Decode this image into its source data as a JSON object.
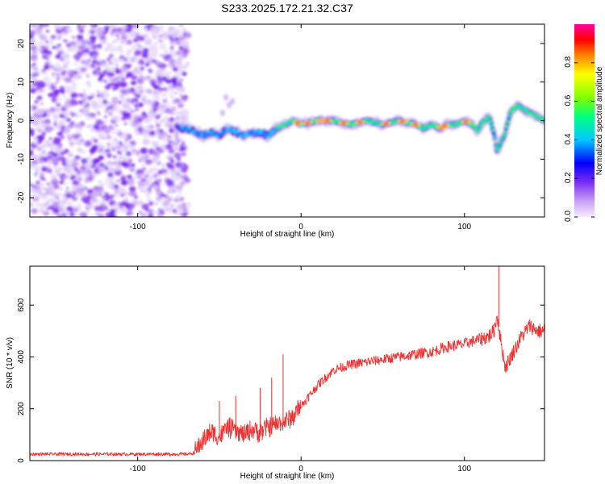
{
  "title": "S233.2025.172.21.32.C37",
  "chart_data": [
    {
      "type": "heatmap",
      "xlabel": "Height of straight line (km)",
      "ylabel": "Frequency (Hz)",
      "xlim": [
        -166,
        149
      ],
      "ylim": [
        -25,
        25
      ],
      "xticks": [
        -100,
        0,
        100
      ],
      "yticks": [
        -20,
        -10,
        0,
        10,
        20
      ],
      "colorbar": {
        "label": "Normalized spectral amplitude",
        "range": [
          0,
          1
        ],
        "ticks": [
          "0.0",
          "0.2",
          "0.4",
          "0.6",
          "0.8"
        ],
        "colormap": "rainbow (violet-blue-cyan-green-yellow-red-magenta)"
      },
      "ridge": {
        "description": "signal frequency ridge, x (km) vs frequency (Hz)",
        "x": [
          -75,
          -70,
          -65,
          -60,
          -55,
          -50,
          -45,
          -40,
          -35,
          -30,
          -25,
          -20,
          -15,
          -10,
          -5,
          0,
          10,
          20,
          30,
          40,
          50,
          60,
          70,
          75,
          80,
          85,
          90,
          95,
          100,
          105,
          108,
          110,
          115,
          118,
          120,
          122,
          125,
          128,
          132,
          136,
          140,
          145,
          149
        ],
        "y": [
          -2,
          -2,
          -3,
          -4,
          -3,
          -4,
          -2,
          -3,
          -4,
          -3,
          -3,
          -4,
          -2,
          -1,
          0,
          -1,
          0,
          0,
          -1,
          0,
          -1,
          0,
          -1,
          -2,
          -1,
          -2,
          -1,
          -1,
          0,
          -1,
          -3,
          -1,
          1,
          -3,
          -8,
          -6,
          -3,
          2,
          4,
          3,
          2,
          1,
          0
        ]
      },
      "noise_region": "broadband low-amplitude noise for x < -70 km"
    },
    {
      "type": "line",
      "xlabel": "Height of straight line (km)",
      "ylabel": "SNR (10 * v/v)",
      "xlim": [
        -166,
        149
      ],
      "ylim": [
        0,
        750
      ],
      "xticks": [
        -100,
        0,
        100
      ],
      "yticks": [
        0,
        200,
        400,
        600
      ],
      "color": "#f03030",
      "series": [
        {
          "x": [
            -166,
            -140,
            -120,
            -100,
            -80,
            -70,
            -65,
            -60,
            -55,
            -50,
            -45,
            -40,
            -35,
            -30,
            -25,
            -20,
            -15,
            -10,
            -5,
            0,
            5,
            10,
            15,
            20,
            25,
            30,
            40,
            50,
            60,
            70,
            80,
            90,
            100,
            105,
            110,
            115,
            118,
            120,
            122,
            125,
            130,
            135,
            140,
            145,
            149
          ],
          "y": [
            25,
            25,
            25,
            25,
            25,
            25,
            30,
            80,
            110,
            90,
            130,
            110,
            100,
            120,
            110,
            130,
            140,
            150,
            170,
            210,
            250,
            290,
            320,
            350,
            360,
            370,
            380,
            390,
            400,
            410,
            420,
            440,
            450,
            460,
            470,
            480,
            500,
            560,
            470,
            360,
            420,
            480,
            520,
            500,
            500
          ]
        }
      ],
      "spikes": [
        {
          "x": -11,
          "y": 410
        },
        {
          "x": -18,
          "y": 320
        },
        {
          "x": -25,
          "y": 280
        },
        {
          "x": -40,
          "y": 250
        },
        {
          "x": -50,
          "y": 230
        },
        {
          "x": 121,
          "y": 750
        }
      ]
    }
  ]
}
